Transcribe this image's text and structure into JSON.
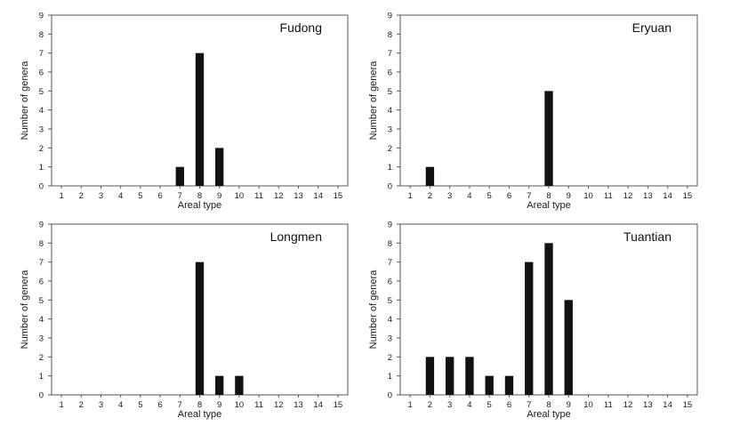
{
  "chart_data": [
    {
      "type": "bar",
      "title": "Fudong",
      "xlabel": "Areal type",
      "ylabel": "Number of genera",
      "ylim": [
        0,
        9
      ],
      "categories": [
        "1",
        "2",
        "3",
        "4",
        "5",
        "6",
        "7",
        "8",
        "9",
        "10",
        "11",
        "12",
        "13",
        "14",
        "15"
      ],
      "values": [
        0,
        0,
        0,
        0,
        0,
        0,
        1,
        7,
        2,
        0,
        0,
        0,
        0,
        0,
        0
      ],
      "yticks": [
        "0",
        "1",
        "2",
        "3",
        "4",
        "5",
        "6",
        "7",
        "8",
        "9"
      ],
      "grid": false
    },
    {
      "type": "bar",
      "title": "Eryuan",
      "xlabel": "Areal type",
      "ylabel": "Number of genera",
      "ylim": [
        0,
        9
      ],
      "categories": [
        "1",
        "2",
        "3",
        "4",
        "5",
        "6",
        "7",
        "8",
        "9",
        "10",
        "11",
        "12",
        "13",
        "14",
        "15"
      ],
      "values": [
        0,
        1,
        0,
        0,
        0,
        0,
        0,
        5,
        0,
        0,
        0,
        0,
        0,
        0,
        0
      ],
      "yticks": [
        "0",
        "1",
        "2",
        "3",
        "4",
        "5",
        "6",
        "7",
        "8",
        "9"
      ],
      "grid": false
    },
    {
      "type": "bar",
      "title": "Longmen",
      "xlabel": "Areal type",
      "ylabel": "Number of genera",
      "ylim": [
        0,
        9
      ],
      "categories": [
        "1",
        "2",
        "3",
        "4",
        "5",
        "6",
        "7",
        "8",
        "9",
        "10",
        "11",
        "12",
        "13",
        "14",
        "15"
      ],
      "values": [
        0,
        0,
        0,
        0,
        0,
        0,
        0,
        7,
        1,
        1,
        0,
        0,
        0,
        0,
        0
      ],
      "yticks": [
        "0",
        "1",
        "2",
        "3",
        "4",
        "5",
        "6",
        "7",
        "8",
        "9"
      ],
      "grid": false
    },
    {
      "type": "bar",
      "title": "Tuantian",
      "xlabel": "Areal type",
      "ylabel": "Number of genera",
      "ylim": [
        0,
        9
      ],
      "categories": [
        "1",
        "2",
        "3",
        "4",
        "5",
        "6",
        "7",
        "8",
        "9",
        "10",
        "11",
        "12",
        "13",
        "14",
        "15"
      ],
      "values": [
        0,
        2,
        2,
        2,
        1,
        1,
        7,
        8,
        5,
        0,
        0,
        0,
        0,
        0,
        0
      ],
      "yticks": [
        "0",
        "1",
        "2",
        "3",
        "4",
        "5",
        "6",
        "7",
        "8",
        "9"
      ],
      "grid": false
    }
  ],
  "colors": {
    "bar": "#111111",
    "axis": "#555555",
    "text": "#1a1a1a"
  }
}
